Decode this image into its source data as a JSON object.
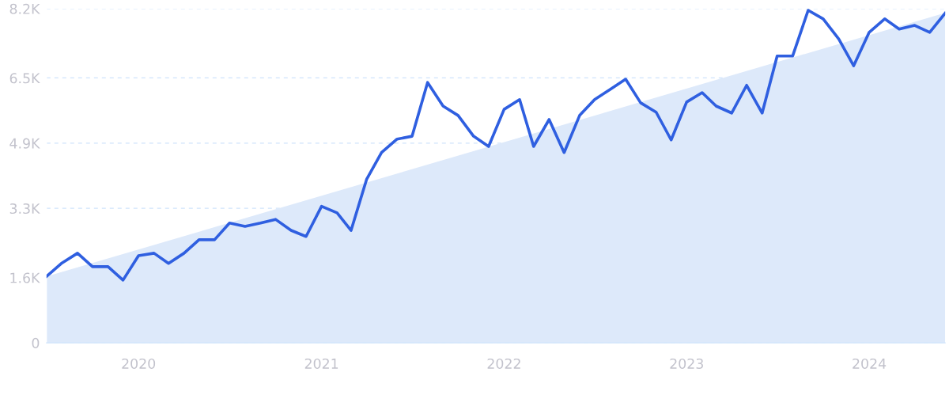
{
  "chart_data": {
    "type": "line",
    "x": [
      "2019-07",
      "2019-08",
      "2019-09",
      "2019-10",
      "2019-11",
      "2019-12",
      "2020-01",
      "2020-02",
      "2020-03",
      "2020-04",
      "2020-05",
      "2020-06",
      "2020-07",
      "2020-08",
      "2020-09",
      "2020-10",
      "2020-11",
      "2020-12",
      "2021-01",
      "2021-02",
      "2021-03",
      "2021-04",
      "2021-05",
      "2021-06",
      "2021-07",
      "2021-08",
      "2021-09",
      "2021-10",
      "2021-11",
      "2021-12",
      "2022-01",
      "2022-02",
      "2022-03",
      "2022-04",
      "2022-05",
      "2022-06",
      "2022-07",
      "2022-08",
      "2022-09",
      "2022-10",
      "2022-11",
      "2022-12",
      "2023-01",
      "2023-02",
      "2023-03",
      "2023-04",
      "2023-05",
      "2023-06",
      "2023-07",
      "2023-08",
      "2023-09",
      "2023-10",
      "2023-11",
      "2023-12",
      "2024-01",
      "2024-02",
      "2024-03",
      "2024-04",
      "2024-05",
      "2024-06"
    ],
    "series": [
      {
        "type": "area",
        "color": "#dde9fa",
        "x": [
          "2019-07",
          "2024-06"
        ],
        "values": [
          1630,
          8100
        ]
      },
      {
        "color": "#2f5fe0",
        "values": [
          1630,
          1960,
          2200,
          1870,
          1870,
          1540,
          2140,
          2200,
          1950,
          2200,
          2530,
          2530,
          2940,
          2860,
          2940,
          3030,
          2760,
          2610,
          3350,
          3190,
          2760,
          4010,
          4670,
          5000,
          5070,
          6390,
          5810,
          5580,
          5070,
          4820,
          5730,
          5970,
          4820,
          5480,
          4670,
          5580,
          5970,
          6220,
          6470,
          5890,
          5660,
          4980,
          5910,
          6140,
          5810,
          5640,
          6320,
          5640,
          7040,
          7040,
          8160,
          7950,
          7460,
          6800,
          7620,
          7950,
          7700,
          7790,
          7620,
          8090
        ]
      }
    ],
    "xlim": [
      "2019-07",
      "2024-06"
    ],
    "xticks": [
      {
        "value": "2020-01",
        "label": "2020"
      },
      {
        "value": "2021-01",
        "label": "2021"
      },
      {
        "value": "2022-01",
        "label": "2022"
      },
      {
        "value": "2023-01",
        "label": "2023"
      },
      {
        "value": "2024-01",
        "label": "2024"
      }
    ],
    "ylim": [
      0,
      8200
    ],
    "yticks": [
      0,
      {
        "value": 1600,
        "label": "1.6K"
      },
      {
        "value": 3300,
        "label": "3.3K"
      },
      {
        "value": 4900,
        "label": "4.9K"
      },
      {
        "value": 6500,
        "label": "6.5K"
      },
      {
        "value": 8200,
        "label": "8.2K"
      }
    ],
    "grid": "y",
    "line_style": "solid",
    "marker": "none"
  }
}
